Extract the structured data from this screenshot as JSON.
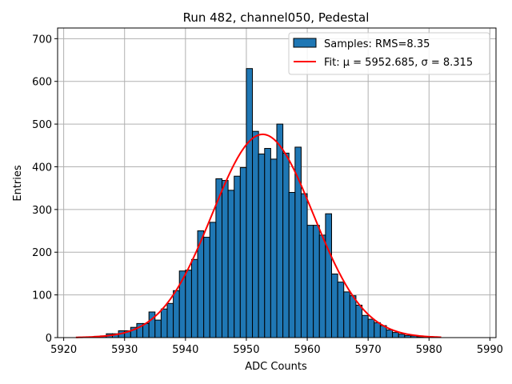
{
  "chart_data": {
    "type": "bar",
    "title": "Run 482, channel050, Pedestal",
    "xlabel": "ADC Counts",
    "ylabel": "Entries",
    "xlim": [
      5919,
      5991
    ],
    "ylim": [
      0,
      725
    ],
    "xticks": [
      5920,
      5930,
      5940,
      5950,
      5960,
      5970,
      5980,
      5990
    ],
    "yticks": [
      0,
      100,
      200,
      300,
      400,
      500,
      600,
      700
    ],
    "grid": true,
    "legend_position": "top-right",
    "bar_color": "#1f77b4",
    "fit_color": "#ff0000",
    "histogram": {
      "name": "Samples: RMS=8.35",
      "bin_start": 5925,
      "bin_width": 1,
      "counts": [
        3,
        4,
        9,
        9,
        16,
        16,
        24,
        33,
        33,
        60,
        41,
        67,
        80,
        110,
        156,
        158,
        183,
        250,
        235,
        270,
        372,
        368,
        345,
        378,
        398,
        630,
        483,
        430,
        443,
        418,
        500,
        432,
        340,
        446,
        337,
        263,
        263,
        240,
        290,
        149,
        130,
        107,
        98,
        76,
        52,
        43,
        35,
        28,
        18,
        12,
        8,
        5,
        4,
        2,
        2,
        1
      ]
    },
    "fit": {
      "name": "Fit: μ = 5952.685, σ = 8.315",
      "mu": 5952.685,
      "sigma": 8.315,
      "x_range": [
        5922,
        5982
      ],
      "amplitude": 476
    }
  }
}
